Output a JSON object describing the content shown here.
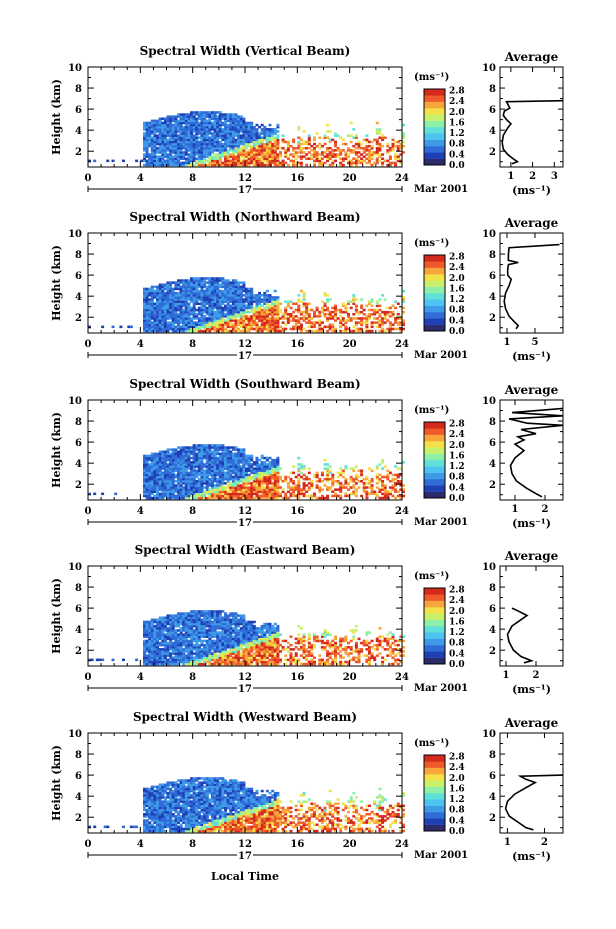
{
  "figure": {
    "xlabel": "Local Time",
    "date_label": "Mar 2001",
    "day_label": "17"
  },
  "chart_data": [
    {
      "type": "heatmap",
      "title": "Spectral Width (Vertical Beam)",
      "ylabel": "Height (km)",
      "xlim": [
        0,
        24
      ],
      "ylim": [
        0.5,
        10
      ],
      "xticks": [
        0,
        4,
        8,
        12,
        16,
        20,
        24
      ],
      "yticks": [
        2,
        4,
        6,
        8,
        10
      ],
      "colorbar": {
        "unit": "(ms⁻¹)",
        "ticks": [
          "0.0",
          "0.4",
          "0.8",
          "1.2",
          "1.6",
          "2.0",
          "2.4",
          "2.8"
        ],
        "range": [
          0,
          2.8
        ]
      },
      "average": {
        "title": "Average",
        "xlabel": "(ms⁻¹)",
        "xticks": [
          1,
          2,
          3
        ],
        "xlim": [
          0.5,
          3.4
        ],
        "yticks": [
          2,
          4,
          6,
          8,
          10
        ],
        "ylim": [
          0.5,
          10
        ],
        "profile": [
          [
            1.05,
            0.8
          ],
          [
            1.3,
            1.0
          ],
          [
            1.1,
            1.3
          ],
          [
            0.85,
            1.7
          ],
          [
            0.65,
            2.2
          ],
          [
            0.6,
            2.8
          ],
          [
            0.65,
            3.5
          ],
          [
            0.85,
            4.2
          ],
          [
            1.0,
            4.6
          ],
          [
            0.8,
            5.0
          ],
          [
            0.65,
            5.4
          ],
          [
            0.7,
            5.8
          ],
          [
            0.95,
            6.1
          ],
          [
            0.9,
            6.3
          ],
          [
            0.8,
            6.7
          ],
          [
            3.4,
            6.8
          ]
        ]
      }
    },
    {
      "type": "heatmap",
      "title": "Spectral Width (Northward Beam)",
      "ylabel": "Height (km)",
      "xlim": [
        0,
        24
      ],
      "ylim": [
        0.5,
        10
      ],
      "xticks": [
        0,
        4,
        8,
        12,
        16,
        20,
        24
      ],
      "yticks": [
        2,
        4,
        6,
        8,
        10
      ],
      "colorbar": {
        "unit": "(ms⁻¹)",
        "ticks": [
          "0.0",
          "0.4",
          "0.8",
          "1.2",
          "1.6",
          "2.0",
          "2.4",
          "2.8"
        ],
        "range": [
          0,
          2.8
        ]
      },
      "average": {
        "title": "Average",
        "xlabel": "(ms⁻¹)",
        "xticks": [
          1,
          5
        ],
        "xlim": [
          0,
          9
        ],
        "yticks": [
          2,
          4,
          6,
          8,
          10
        ],
        "ylim": [
          0.5,
          10
        ],
        "profile": [
          [
            2.3,
            0.9
          ],
          [
            2.6,
            1.2
          ],
          [
            2.0,
            1.6
          ],
          [
            1.3,
            2.1
          ],
          [
            0.8,
            2.8
          ],
          [
            0.6,
            3.5
          ],
          [
            0.8,
            4.3
          ],
          [
            1.3,
            5.0
          ],
          [
            1.6,
            5.6
          ],
          [
            1.1,
            6.0
          ],
          [
            1.1,
            6.5
          ],
          [
            1.2,
            7.0
          ],
          [
            2.6,
            7.2
          ],
          [
            1.2,
            7.4
          ],
          [
            1.2,
            8.0
          ],
          [
            1.3,
            8.6
          ],
          [
            8.5,
            8.9
          ]
        ]
      }
    },
    {
      "type": "heatmap",
      "title": "Spectral Width (Southward Beam)",
      "ylabel": "Height (km)",
      "xlim": [
        0,
        24
      ],
      "ylim": [
        0.5,
        10
      ],
      "xticks": [
        0,
        4,
        8,
        12,
        16,
        20,
        24
      ],
      "yticks": [
        2,
        4,
        6,
        8,
        10
      ],
      "colorbar": {
        "unit": "(ms⁻¹)",
        "ticks": [
          "0.0",
          "0.4",
          "0.8",
          "1.2",
          "1.6",
          "2.0",
          "2.4",
          "2.8"
        ],
        "range": [
          0,
          2.8
        ]
      },
      "average": {
        "title": "Average",
        "xlabel": "(ms⁻¹)",
        "xticks": [
          1,
          2
        ],
        "xlim": [
          0.5,
          2.6
        ],
        "yticks": [
          2,
          4,
          6,
          8,
          10
        ],
        "ylim": [
          0.5,
          10
        ],
        "profile": [
          [
            1.9,
            0.8
          ],
          [
            1.7,
            1.1
          ],
          [
            1.4,
            1.6
          ],
          [
            1.05,
            2.3
          ],
          [
            0.9,
            3.0
          ],
          [
            0.85,
            3.8
          ],
          [
            1.0,
            4.5
          ],
          [
            1.3,
            5.2
          ],
          [
            1.0,
            5.8
          ],
          [
            1.3,
            6.2
          ],
          [
            1.1,
            6.5
          ],
          [
            1.7,
            6.8
          ],
          [
            1.2,
            7.2
          ],
          [
            2.6,
            7.6
          ],
          [
            1.4,
            7.8
          ],
          [
            0.8,
            8.2
          ],
          [
            2.6,
            8.5
          ],
          [
            0.9,
            8.8
          ],
          [
            2.6,
            9.2
          ]
        ]
      }
    },
    {
      "type": "heatmap",
      "title": "Spectral Width (Eastward Beam)",
      "ylabel": "Height (km)",
      "xlim": [
        0,
        24
      ],
      "ylim": [
        0.5,
        10
      ],
      "xticks": [
        0,
        4,
        8,
        12,
        16,
        20,
        24
      ],
      "yticks": [
        2,
        4,
        6,
        8,
        10
      ],
      "colorbar": {
        "unit": "(ms⁻¹)",
        "ticks": [
          "0.0",
          "0.4",
          "0.8",
          "1.2",
          "1.6",
          "2.0",
          "2.4",
          "2.8"
        ],
        "range": [
          0,
          2.8
        ]
      },
      "average": {
        "title": "Average",
        "xlabel": "(ms⁻¹)",
        "xticks": [
          1,
          2
        ],
        "xlim": [
          0.8,
          2.9
        ],
        "yticks": [
          2,
          4,
          6,
          8,
          10
        ],
        "ylim": [
          0.5,
          10
        ],
        "profile": [
          [
            1.6,
            0.8
          ],
          [
            1.85,
            1.0
          ],
          [
            1.5,
            1.4
          ],
          [
            1.25,
            2.0
          ],
          [
            1.1,
            2.8
          ],
          [
            1.05,
            3.5
          ],
          [
            1.2,
            4.3
          ],
          [
            1.5,
            4.9
          ],
          [
            1.7,
            5.3
          ],
          [
            1.35,
            5.8
          ],
          [
            1.2,
            6.0
          ]
        ]
      }
    },
    {
      "type": "heatmap",
      "title": "Spectral Width (Westward Beam)",
      "ylabel": "Height (km)",
      "xlim": [
        0,
        24
      ],
      "ylim": [
        0.5,
        10
      ],
      "xticks": [
        0,
        4,
        8,
        12,
        16,
        20,
        24
      ],
      "yticks": [
        2,
        4,
        6,
        8,
        10
      ],
      "colorbar": {
        "unit": "(ms⁻¹)",
        "ticks": [
          "0.0",
          "0.4",
          "0.8",
          "1.2",
          "1.6",
          "2.0",
          "2.4",
          "2.8"
        ],
        "range": [
          0,
          2.8
        ]
      },
      "average": {
        "title": "Average",
        "xlabel": "(ms⁻¹)",
        "xticks": [
          1,
          2
        ],
        "xlim": [
          0.8,
          2.5
        ],
        "yticks": [
          2,
          4,
          6,
          8,
          10
        ],
        "ylim": [
          0.5,
          10
        ],
        "profile": [
          [
            1.7,
            0.8
          ],
          [
            1.5,
            1.0
          ],
          [
            1.3,
            1.5
          ],
          [
            1.05,
            2.1
          ],
          [
            0.95,
            2.8
          ],
          [
            1.0,
            3.5
          ],
          [
            1.2,
            4.2
          ],
          [
            1.5,
            4.8
          ],
          [
            1.75,
            5.3
          ],
          [
            1.5,
            5.6
          ],
          [
            1.35,
            5.9
          ],
          [
            2.5,
            6.0
          ]
        ]
      }
    }
  ]
}
